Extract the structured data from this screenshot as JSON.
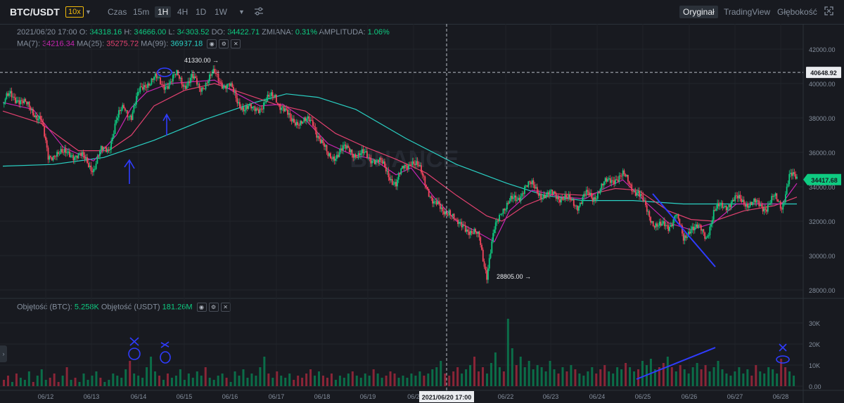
{
  "header": {
    "symbol": "BTC/USDT",
    "leverage": "10x",
    "intervals": [
      "Czas",
      "15m",
      "1H",
      "4H",
      "1D",
      "1W"
    ],
    "active_interval": "1H",
    "views": [
      "Oryginał",
      "TradingView",
      "Głębokość"
    ],
    "active_view": "Oryginał"
  },
  "ohlc": {
    "date": "2021/06/20 17:00",
    "o_label": "O:",
    "o": "34318.16",
    "h_label": "H:",
    "h": "34666.00",
    "l_label": "L:",
    "l": "34303.52",
    "do_label": "DO:",
    "do": "34422.71",
    "change_label": "ZMIANA:",
    "change": "0.31%",
    "amp_label": "AMPLITUDA:",
    "amp": "1.06%"
  },
  "ma": {
    "ma7_label": "MA(7):",
    "ma7": "34216.34",
    "ma25_label": "MA(25):",
    "ma25": "35275.72",
    "ma99_label": "MA(99):",
    "ma99": "36937.18"
  },
  "volume": {
    "btc_label": "Objętość (BTC):",
    "btc": "5.258K",
    "usdt_label": "Objętość (USDT)",
    "usdt": "181.26M"
  },
  "colors": {
    "up": "#0ecb81",
    "down": "#f6465d",
    "ma7": "#c724b1",
    "ma25": "#e2416f",
    "ma99": "#2ad1c4",
    "annotation": "#2f3cff"
  },
  "chart_data": {
    "type": "candlestick",
    "watermark": "BINANCE",
    "price_axis": {
      "ticks": [
        "42000.00",
        "40000.00",
        "38000.00",
        "36000.00",
        "34000.00",
        "32000.00",
        "30000.00",
        "28000.00"
      ],
      "ylim": [
        27400,
        42700
      ]
    },
    "volume_axis": {
      "ticks": [
        "30K",
        "20K",
        "10K",
        "0.00"
      ],
      "ylim": [
        0,
        34000
      ]
    },
    "x_ticks": [
      "06/12",
      "06/13",
      "06/14",
      "06/15",
      "06/16",
      "06/17",
      "06/18",
      "06/19",
      "06/2",
      "06/22",
      "06/23",
      "06/24",
      "06/25",
      "06/26",
      "06/27",
      "06/28"
    ],
    "last_price": "34417.68",
    "crosshair_price": "40648.92",
    "crosshair_time": "2021/06/20 17:00",
    "high_marker": "41330.00",
    "low_marker": "28805.00",
    "price_path": [
      [
        0,
        38800
      ],
      [
        6,
        39300
      ],
      [
        12,
        39200
      ],
      [
        18,
        38700
      ],
      [
        24,
        38400
      ],
      [
        30,
        38000
      ],
      [
        36,
        35600
      ],
      [
        42,
        36100
      ],
      [
        48,
        35800
      ],
      [
        54,
        36000
      ],
      [
        60,
        35800
      ],
      [
        66,
        35500
      ],
      [
        72,
        35100
      ],
      [
        78,
        36000
      ],
      [
        84,
        36300
      ],
      [
        90,
        37800
      ],
      [
        96,
        38600
      ],
      [
        102,
        38200
      ],
      [
        108,
        39400
      ],
      [
        114,
        40100
      ],
      [
        120,
        40300
      ],
      [
        126,
        39900
      ],
      [
        132,
        40100
      ],
      [
        138,
        40400
      ],
      [
        144,
        40000
      ],
      [
        150,
        40300
      ],
      [
        156,
        39700
      ],
      [
        162,
        40200
      ],
      [
        168,
        40500
      ],
      [
        174,
        40100
      ],
      [
        180,
        39800
      ],
      [
        186,
        39000
      ],
      [
        192,
        38600
      ],
      [
        198,
        38400
      ],
      [
        204,
        38700
      ],
      [
        210,
        39000
      ],
      [
        216,
        39300
      ],
      [
        222,
        38600
      ],
      [
        228,
        37800
      ],
      [
        234,
        37900
      ],
      [
        240,
        37700
      ],
      [
        246,
        37800
      ],
      [
        252,
        36700
      ],
      [
        258,
        35700
      ],
      [
        264,
        35900
      ],
      [
        270,
        36100
      ],
      [
        276,
        36200
      ],
      [
        282,
        35800
      ],
      [
        288,
        35800
      ],
      [
        294,
        35700
      ],
      [
        300,
        35300
      ],
      [
        306,
        34800
      ],
      [
        312,
        34100
      ],
      [
        318,
        35100
      ],
      [
        324,
        35600
      ],
      [
        330,
        35000
      ],
      [
        336,
        34200
      ],
      [
        342,
        33000
      ],
      [
        348,
        32600
      ],
      [
        354,
        32700
      ],
      [
        360,
        31700
      ],
      [
        366,
        31900
      ],
      [
        372,
        31200
      ],
      [
        378,
        31100
      ],
      [
        384,
        28900
      ],
      [
        390,
        31400
      ],
      [
        396,
        32800
      ],
      [
        402,
        33100
      ],
      [
        408,
        33200
      ],
      [
        414,
        34100
      ],
      [
        420,
        34000
      ],
      [
        426,
        33700
      ],
      [
        432,
        33400
      ],
      [
        438,
        33600
      ],
      [
        444,
        33400
      ],
      [
        450,
        33100
      ],
      [
        456,
        33000
      ],
      [
        462,
        33500
      ],
      [
        468,
        33300
      ],
      [
        474,
        34000
      ],
      [
        480,
        34200
      ],
      [
        486,
        34600
      ],
      [
        492,
        34600
      ],
      [
        498,
        34100
      ],
      [
        504,
        33700
      ],
      [
        510,
        32700
      ],
      [
        516,
        32000
      ],
      [
        522,
        31600
      ],
      [
        528,
        31700
      ],
      [
        534,
        32500
      ],
      [
        540,
        30800
      ],
      [
        546,
        31800
      ],
      [
        552,
        31500
      ],
      [
        558,
        31100
      ],
      [
        564,
        32500
      ],
      [
        570,
        32800
      ],
      [
        576,
        33100
      ],
      [
        582,
        33200
      ],
      [
        588,
        33200
      ],
      [
        594,
        33000
      ],
      [
        600,
        32900
      ],
      [
        606,
        32900
      ],
      [
        612,
        33300
      ],
      [
        618,
        32900
      ],
      [
        624,
        34600
      ],
      [
        630,
        34400
      ]
    ],
    "ma7_path": [
      [
        0,
        38900
      ],
      [
        24,
        38500
      ],
      [
        48,
        36300
      ],
      [
        72,
        35500
      ],
      [
        90,
        37000
      ],
      [
        102,
        38600
      ],
      [
        114,
        39500
      ],
      [
        132,
        40000
      ],
      [
        150,
        40100
      ],
      [
        168,
        40200
      ],
      [
        186,
        39400
      ],
      [
        204,
        38700
      ],
      [
        222,
        38800
      ],
      [
        240,
        37900
      ],
      [
        258,
        36500
      ],
      [
        276,
        35900
      ],
      [
        294,
        35600
      ],
      [
        312,
        34700
      ],
      [
        324,
        35100
      ],
      [
        342,
        33400
      ],
      [
        360,
        32000
      ],
      [
        378,
        31300
      ],
      [
        390,
        30800
      ],
      [
        402,
        32600
      ],
      [
        420,
        33800
      ],
      [
        444,
        33400
      ],
      [
        462,
        33300
      ],
      [
        480,
        34000
      ],
      [
        492,
        34400
      ],
      [
        510,
        33100
      ],
      [
        528,
        31900
      ],
      [
        546,
        31500
      ],
      [
        564,
        31900
      ],
      [
        582,
        33000
      ],
      [
        600,
        33000
      ],
      [
        618,
        33000
      ],
      [
        630,
        34200
      ]
    ],
    "ma25_path": [
      [
        0,
        38400
      ],
      [
        30,
        37700
      ],
      [
        60,
        36100
      ],
      [
        84,
        36100
      ],
      [
        102,
        37000
      ],
      [
        120,
        38700
      ],
      [
        144,
        39600
      ],
      [
        168,
        40000
      ],
      [
        192,
        39400
      ],
      [
        216,
        38800
      ],
      [
        240,
        38400
      ],
      [
        264,
        37100
      ],
      [
        288,
        36300
      ],
      [
        312,
        35600
      ],
      [
        336,
        34800
      ],
      [
        360,
        33500
      ],
      [
        384,
        32300
      ],
      [
        396,
        32000
      ],
      [
        414,
        32900
      ],
      [
        438,
        33600
      ],
      [
        462,
        33500
      ],
      [
        486,
        33900
      ],
      [
        504,
        33800
      ],
      [
        528,
        32600
      ],
      [
        546,
        32100
      ],
      [
        564,
        32000
      ],
      [
        588,
        32600
      ],
      [
        612,
        32900
      ],
      [
        630,
        33400
      ]
    ],
    "ma99_path": [
      [
        0,
        35200
      ],
      [
        40,
        35300
      ],
      [
        80,
        35700
      ],
      [
        120,
        36700
      ],
      [
        160,
        37900
      ],
      [
        200,
        38900
      ],
      [
        225,
        39400
      ],
      [
        250,
        39200
      ],
      [
        280,
        38500
      ],
      [
        320,
        36800
      ],
      [
        360,
        35300
      ],
      [
        400,
        34200
      ],
      [
        430,
        33500
      ],
      [
        460,
        33200
      ],
      [
        500,
        33200
      ],
      [
        540,
        33000
      ],
      [
        580,
        33000
      ],
      [
        630,
        33000
      ]
    ],
    "volume_bars": [
      3,
      5,
      2,
      6,
      4,
      3,
      7,
      2,
      5,
      8,
      3,
      4,
      6,
      2,
      5,
      9,
      3,
      4,
      2,
      6,
      3,
      5,
      7,
      4,
      2,
      3,
      6,
      5,
      4,
      8,
      12,
      6,
      5,
      4,
      9,
      14,
      7,
      5,
      3,
      6,
      4,
      5,
      8,
      3,
      6,
      4,
      7,
      5,
      9,
      4,
      3,
      5,
      6,
      4,
      2,
      7,
      5,
      8,
      4,
      6,
      5,
      9,
      14,
      6,
      4,
      7,
      5,
      4,
      6,
      3,
      5,
      4,
      6,
      8,
      5,
      7,
      5,
      4,
      6,
      3,
      5,
      4,
      6,
      7,
      5,
      4,
      6,
      5,
      8,
      6,
      4,
      5,
      7,
      6,
      4,
      5,
      4,
      6,
      5,
      7,
      5,
      6,
      8,
      9,
      12,
      6,
      5,
      7,
      9,
      6,
      8,
      10,
      14,
      7,
      9,
      6,
      11,
      16,
      9,
      7,
      32,
      18,
      10,
      14,
      9,
      12,
      8,
      10,
      9,
      7,
      12,
      8,
      6,
      9,
      7,
      10,
      8,
      6,
      5,
      7,
      9,
      6,
      8,
      10,
      7,
      6,
      9,
      8,
      11,
      9,
      7,
      8,
      12,
      10,
      13,
      8,
      9,
      11,
      14,
      9,
      7,
      10,
      8,
      6,
      9,
      11,
      8,
      10,
      7,
      9,
      12,
      8,
      6,
      5,
      7,
      9,
      6,
      8,
      5,
      10,
      7,
      6,
      9,
      8,
      6,
      13,
      9,
      7,
      5
    ]
  }
}
